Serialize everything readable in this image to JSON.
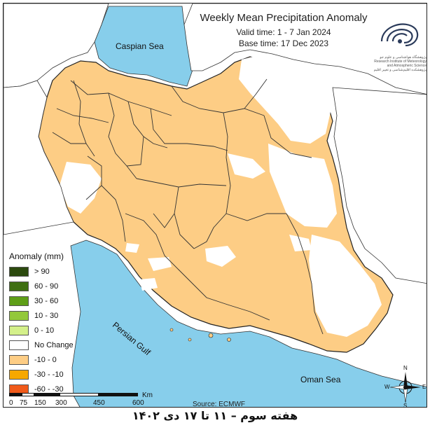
{
  "map": {
    "title": "Weekly Mean Precipitation Anomaly",
    "valid_time": "Valid time: 1 - 7 Jan 2024",
    "base_time": "Base time: 17 Dec 2023",
    "source": "Source: ECMWF",
    "caption": "هفته سوم – ۱۱ تا ۱۷ دی ۱۴۰۲",
    "labels": {
      "caspian": "Caspian Sea",
      "gulf": "Persian Gulf",
      "oman": "Oman Sea"
    },
    "logo_text": "پژوهشگاه هواشناسی و علوم جو\nResearch Institute of Meteorology and Atmospheric Science\nپژوهشکده اقلیم‌شناسی و تغییر اقلیم",
    "colors": {
      "sea": "#87ceeb",
      "land_neutral": "#ffffff",
      "anomaly_dry": "#fdcd85",
      "border": "#222222"
    }
  },
  "legend": {
    "title": "Anomaly (mm)",
    "items": [
      {
        "label": "> 90",
        "color": "#2c4a0e"
      },
      {
        "label": "60 - 90",
        "color": "#3f6f12"
      },
      {
        "label": "30 - 60",
        "color": "#5e9e17"
      },
      {
        "label": "10 - 30",
        "color": "#93c83a"
      },
      {
        "label": "0 - 10",
        "color": "#d4f08a"
      },
      {
        "label": "No Change",
        "color": "#ffffff"
      },
      {
        "label": "-10 - 0",
        "color": "#fdcd85"
      },
      {
        "label": "-30 - -10",
        "color": "#f7a800"
      },
      {
        "label": "-60 - -30",
        "color": "#f05a1a"
      }
    ]
  },
  "scale": {
    "ticks": [
      "0",
      "75",
      "150",
      "300",
      "450",
      "600"
    ],
    "unit": "Km"
  },
  "compass": {
    "n": "N",
    "s": "S",
    "e": "E",
    "w": "W"
  }
}
